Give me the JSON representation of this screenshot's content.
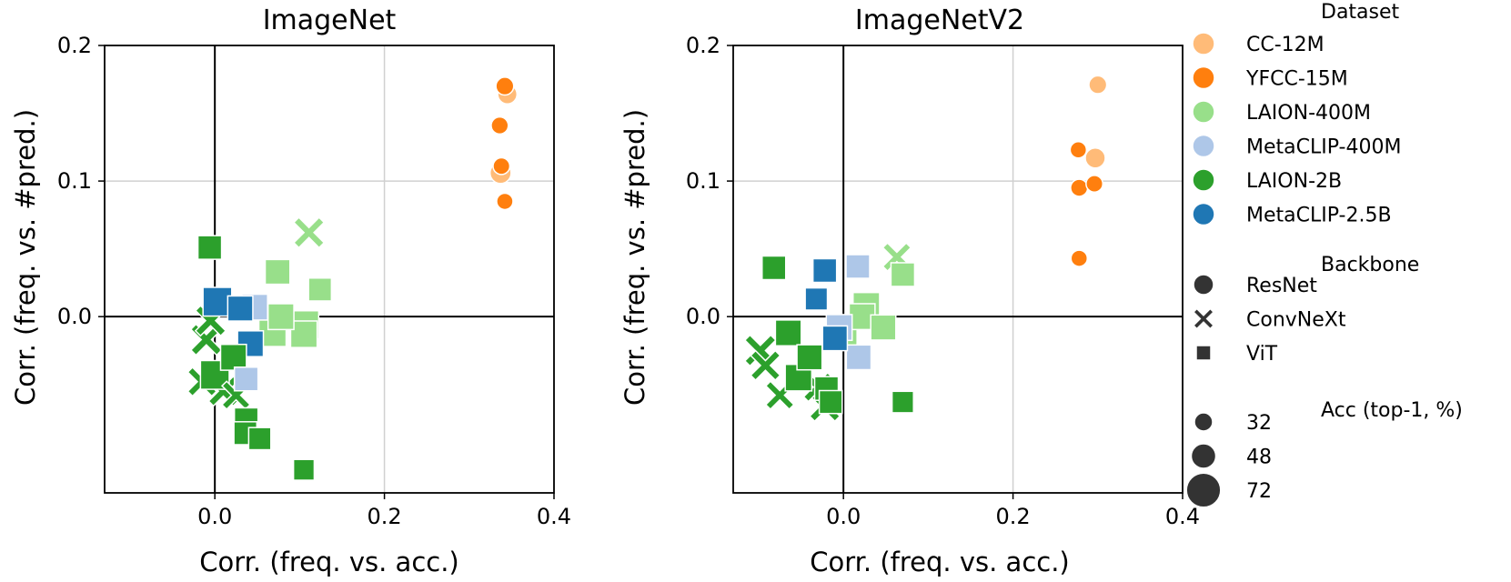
{
  "colors": {
    "CC-12M": "#ffbb78",
    "YFCC-15M": "#ff7f0e",
    "LAION-400M": "#98df8a",
    "MetaCLIP-400M": "#aec7e8",
    "LAION-2B": "#2ca02c",
    "MetaCLIP-2.5B": "#1f77b4"
  },
  "legend": {
    "dataset_title": "Dataset",
    "datasets": [
      "CC-12M",
      "YFCC-15M",
      "LAION-400M",
      "MetaCLIP-400M",
      "LAION-2B",
      "MetaCLIP-2.5B"
    ],
    "backbone_title": "Backbone",
    "backbones": [
      {
        "label": "ResNet",
        "marker": "circle"
      },
      {
        "label": "ConvNeXt",
        "marker": "x"
      },
      {
        "label": "ViT",
        "marker": "square"
      }
    ],
    "acc_title": "Acc (top-1, %)",
    "acc_sizes": [
      {
        "label": "32",
        "value": 32
      },
      {
        "label": "48",
        "value": 48
      },
      {
        "label": "72",
        "value": 72
      }
    ]
  },
  "chart_data": [
    {
      "type": "scatter",
      "title": "ImageNet",
      "xlabel": "Corr. (freq. vs. acc.)",
      "ylabel": "Corr. (freq. vs. #pred.)",
      "xlim": [
        -0.13,
        0.4
      ],
      "ylim": [
        -0.13,
        0.2
      ],
      "xticks": [
        0.0,
        0.2,
        0.4
      ],
      "xtick_labels": [
        "0.0",
        "0.2",
        "0.4"
      ],
      "yticks": [
        0.0,
        0.1,
        0.2
      ],
      "ytick_labels": [
        "0.0",
        "0.1",
        "0.2"
      ],
      "grid": true,
      "points": [
        {
          "dataset": "CC-12M",
          "backbone": "ResNet",
          "x": 0.345,
          "y": 0.164,
          "acc": 40
        },
        {
          "dataset": "CC-12M",
          "backbone": "ResNet",
          "x": 0.337,
          "y": 0.106,
          "acc": 45
        },
        {
          "dataset": "YFCC-15M",
          "backbone": "ResNet",
          "x": 0.342,
          "y": 0.17,
          "acc": 36
        },
        {
          "dataset": "YFCC-15M",
          "backbone": "ResNet",
          "x": 0.336,
          "y": 0.141,
          "acc": 34
        },
        {
          "dataset": "YFCC-15M",
          "backbone": "ResNet",
          "x": 0.338,
          "y": 0.111,
          "acc": 33
        },
        {
          "dataset": "YFCC-15M",
          "backbone": "ResNet",
          "x": 0.342,
          "y": 0.085,
          "acc": 32
        },
        {
          "dataset": "LAION-400M",
          "backbone": "ConvNeXt",
          "x": 0.111,
          "y": 0.062,
          "acc": 70
        },
        {
          "dataset": "LAION-400M",
          "backbone": "ViT",
          "x": 0.074,
          "y": 0.033,
          "acc": 55
        },
        {
          "dataset": "LAION-400M",
          "backbone": "ViT",
          "x": 0.124,
          "y": 0.02,
          "acc": 50
        },
        {
          "dataset": "LAION-400M",
          "backbone": "ViT",
          "x": 0.078,
          "y": 0.0,
          "acc": 58
        },
        {
          "dataset": "LAION-400M",
          "backbone": "ViT",
          "x": 0.068,
          "y": -0.012,
          "acc": 62
        },
        {
          "dataset": "LAION-400M",
          "backbone": "ViT",
          "x": 0.106,
          "y": -0.006,
          "acc": 64
        },
        {
          "dataset": "LAION-400M",
          "backbone": "ViT",
          "x": 0.105,
          "y": -0.013,
          "acc": 60
        },
        {
          "dataset": "MetaCLIP-400M",
          "backbone": "ViT",
          "x": 0.047,
          "y": 0.007,
          "acc": 58
        },
        {
          "dataset": "MetaCLIP-400M",
          "backbone": "ViT",
          "x": 0.037,
          "y": -0.046,
          "acc": 52
        },
        {
          "dataset": "MetaCLIP-2.5B",
          "backbone": "ViT",
          "x": 0.003,
          "y": 0.011,
          "acc": 66
        },
        {
          "dataset": "MetaCLIP-2.5B",
          "backbone": "ViT",
          "x": 0.03,
          "y": 0.006,
          "acc": 56
        },
        {
          "dataset": "MetaCLIP-2.5B",
          "backbone": "ViT",
          "x": 0.042,
          "y": -0.02,
          "acc": 58
        },
        {
          "dataset": "LAION-2B",
          "backbone": "ViT",
          "x": -0.006,
          "y": 0.051,
          "acc": 52
        },
        {
          "dataset": "LAION-2B",
          "backbone": "ConvNeXt",
          "x": -0.005,
          "y": -0.003,
          "acc": 70
        },
        {
          "dataset": "LAION-2B",
          "backbone": "ConvNeXt",
          "x": -0.01,
          "y": -0.017,
          "acc": 72
        },
        {
          "dataset": "LAION-2B",
          "backbone": "ConvNeXt",
          "x": -0.015,
          "y": -0.048,
          "acc": 66
        },
        {
          "dataset": "LAION-2B",
          "backbone": "ConvNeXt",
          "x": 0.01,
          "y": -0.055,
          "acc": 68
        },
        {
          "dataset": "LAION-2B",
          "backbone": "ConvNeXt",
          "x": 0.025,
          "y": -0.058,
          "acc": 64
        },
        {
          "dataset": "LAION-2B",
          "backbone": "ViT",
          "x": 0.022,
          "y": -0.03,
          "acc": 58
        },
        {
          "dataset": "LAION-2B",
          "backbone": "ViT",
          "x": 0.0,
          "y": -0.043,
          "acc": 66
        },
        {
          "dataset": "LAION-2B",
          "backbone": "ViT",
          "x": 0.037,
          "y": -0.076,
          "acc": 52
        },
        {
          "dataset": "LAION-2B",
          "backbone": "ViT",
          "x": 0.036,
          "y": -0.086,
          "acc": 50
        },
        {
          "dataset": "LAION-2B",
          "backbone": "ViT",
          "x": 0.053,
          "y": -0.09,
          "acc": 48
        },
        {
          "dataset": "LAION-2B",
          "backbone": "ViT",
          "x": 0.105,
          "y": -0.113,
          "acc": 44
        }
      ]
    },
    {
      "type": "scatter",
      "title": "ImageNetV2",
      "xlabel": "Corr. (freq. vs. acc.)",
      "ylabel": "Corr. (freq. vs. #pred.)",
      "xlim": [
        -0.13,
        0.4
      ],
      "ylim": [
        -0.13,
        0.2
      ],
      "xticks": [
        0.0,
        0.2,
        0.4
      ],
      "xtick_labels": [
        "0.0",
        "0.2",
        "0.4"
      ],
      "yticks": [
        0.0,
        0.1,
        0.2
      ],
      "ytick_labels": [
        "0.0",
        "0.1",
        "0.2"
      ],
      "grid": true,
      "points": [
        {
          "dataset": "CC-12M",
          "backbone": "ResNet",
          "x": 0.3,
          "y": 0.171,
          "acc": 36
        },
        {
          "dataset": "CC-12M",
          "backbone": "ResNet",
          "x": 0.297,
          "y": 0.117,
          "acc": 42
        },
        {
          "dataset": "YFCC-15M",
          "backbone": "ResNet",
          "x": 0.277,
          "y": 0.123,
          "acc": 32
        },
        {
          "dataset": "YFCC-15M",
          "backbone": "ResNet",
          "x": 0.296,
          "y": 0.098,
          "acc": 33
        },
        {
          "dataset": "YFCC-15M",
          "backbone": "ResNet",
          "x": 0.278,
          "y": 0.095,
          "acc": 34
        },
        {
          "dataset": "YFCC-15M",
          "backbone": "ResNet",
          "x": 0.278,
          "y": 0.043,
          "acc": 32
        },
        {
          "dataset": "LAION-400M",
          "backbone": "ConvNeXt",
          "x": 0.063,
          "y": 0.044,
          "acc": 64
        },
        {
          "dataset": "LAION-400M",
          "backbone": "ViT",
          "x": 0.07,
          "y": 0.031,
          "acc": 52
        },
        {
          "dataset": "LAION-400M",
          "backbone": "ViT",
          "x": 0.027,
          "y": 0.008,
          "acc": 60
        },
        {
          "dataset": "LAION-400M",
          "backbone": "ViT",
          "x": 0.022,
          "y": 0.0,
          "acc": 58
        },
        {
          "dataset": "LAION-400M",
          "backbone": "ViT",
          "x": 0.047,
          "y": -0.008,
          "acc": 56
        },
        {
          "dataset": "LAION-400M",
          "backbone": "ViT",
          "x": 0.0,
          "y": -0.013,
          "acc": 62
        },
        {
          "dataset": "MetaCLIP-400M",
          "backbone": "ViT",
          "x": 0.017,
          "y": 0.037,
          "acc": 52
        },
        {
          "dataset": "MetaCLIP-400M",
          "backbone": "ViT",
          "x": 0.018,
          "y": -0.03,
          "acc": 55
        },
        {
          "dataset": "MetaCLIP-400M",
          "backbone": "ViT",
          "x": -0.005,
          "y": -0.008,
          "acc": 58
        },
        {
          "dataset": "MetaCLIP-2.5B",
          "backbone": "ViT",
          "x": -0.022,
          "y": 0.034,
          "acc": 52
        },
        {
          "dataset": "MetaCLIP-2.5B",
          "backbone": "ViT",
          "x": -0.032,
          "y": 0.013,
          "acc": 48
        },
        {
          "dataset": "MetaCLIP-2.5B",
          "backbone": "ViT",
          "x": -0.01,
          "y": -0.016,
          "acc": 55
        },
        {
          "dataset": "LAION-2B",
          "backbone": "ViT",
          "x": -0.082,
          "y": 0.036,
          "acc": 52
        },
        {
          "dataset": "LAION-2B",
          "backbone": "ViT",
          "x": -0.065,
          "y": -0.012,
          "acc": 58
        },
        {
          "dataset": "LAION-2B",
          "backbone": "ConvNeXt",
          "x": -0.098,
          "y": -0.025,
          "acc": 72
        },
        {
          "dataset": "LAION-2B",
          "backbone": "ConvNeXt",
          "x": -0.092,
          "y": -0.036,
          "acc": 68
        },
        {
          "dataset": "LAION-2B",
          "backbone": "ConvNeXt",
          "x": -0.075,
          "y": -0.058,
          "acc": 64
        },
        {
          "dataset": "LAION-2B",
          "backbone": "ConvNeXt",
          "x": -0.03,
          "y": -0.052,
          "acc": 66
        },
        {
          "dataset": "LAION-2B",
          "backbone": "ConvNeXt",
          "x": -0.022,
          "y": -0.066,
          "acc": 70
        },
        {
          "dataset": "LAION-2B",
          "backbone": "ViT",
          "x": -0.04,
          "y": -0.03,
          "acc": 56
        },
        {
          "dataset": "LAION-2B",
          "backbone": "ViT",
          "x": -0.053,
          "y": -0.045,
          "acc": 60
        },
        {
          "dataset": "LAION-2B",
          "backbone": "ViT",
          "x": -0.02,
          "y": -0.053,
          "acc": 52
        },
        {
          "dataset": "LAION-2B",
          "backbone": "ViT",
          "x": -0.015,
          "y": -0.063,
          "acc": 50
        },
        {
          "dataset": "LAION-2B",
          "backbone": "ViT",
          "x": 0.07,
          "y": -0.063,
          "acc": 46
        }
      ]
    }
  ]
}
